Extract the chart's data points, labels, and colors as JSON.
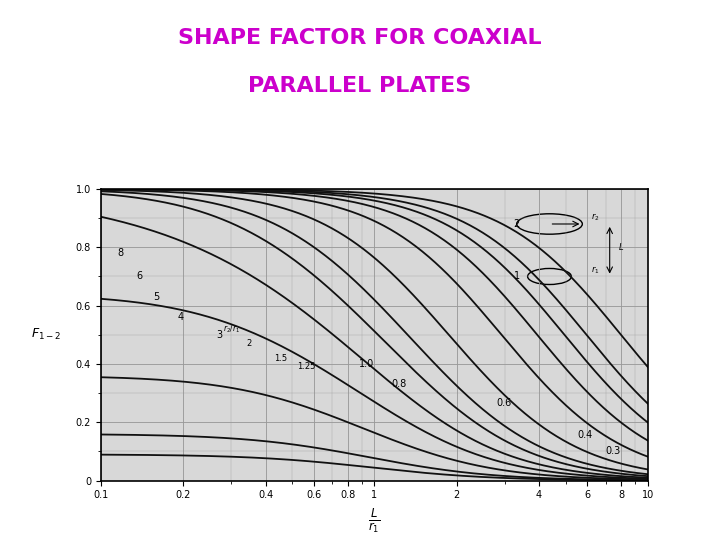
{
  "title_line1": "SHAPE FACTOR FOR COAXIAL",
  "title_line2": "PARALLEL PLATES",
  "title_color": "#cc00cc",
  "title_fontsize": 16,
  "r2_r1_values": [
    8,
    6,
    5,
    4,
    3,
    2,
    1.5,
    1.25,
    1.0,
    0.8,
    0.6,
    0.4,
    0.3
  ],
  "r2_r1_labels": [
    "8",
    "6",
    "5",
    "4",
    "3",
    "2",
    "1.5",
    "1.25",
    "1.0",
    "0.8",
    "0.6",
    "0.4",
    "0.3"
  ],
  "bg_color": "#ffffff",
  "curve_color": "#111111",
  "grid_color": "#999999",
  "xmin": 0.1,
  "xmax": 10.0,
  "ymin": 0.0,
  "ymax": 1.0,
  "xtick_positions": [
    0.1,
    0.2,
    0.4,
    0.6,
    0.8,
    1.0,
    2.0,
    4.0,
    6.0,
    8.0,
    10.0
  ],
  "xtick_labels": [
    "0.1",
    "0.2",
    "0.4",
    "0.6",
    "0.8",
    "1",
    "2",
    "4",
    "6",
    "8",
    "10"
  ],
  "ytick_positions": [
    0.0,
    0.2,
    0.4,
    0.6,
    0.8,
    1.0
  ],
  "ytick_labels": [
    "0",
    "0.2",
    "0.4",
    "0.6",
    "0.8",
    "1.0"
  ]
}
